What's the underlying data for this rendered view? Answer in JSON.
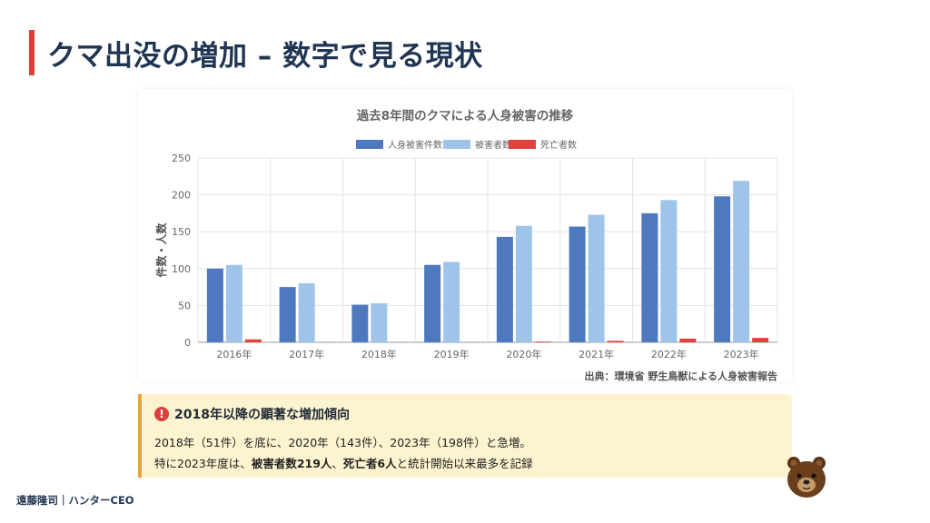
{
  "slide": {
    "title": "クマ出没の増加 – 数字で見る現状",
    "footer": "遠藤隆司｜ハンターCEO",
    "source": "出典：環境省 野生鳥獣による人身被害報告",
    "accent_color": "#d9403b"
  },
  "callout": {
    "icon": "alert-circle-icon",
    "title": "2018年以降の顕著な増加傾向",
    "line1": "2018年（51件）を底に、2020年（143件）、2023年（198件）と急増。",
    "line2_prefix": "特に2023年度は、",
    "line2_bold1": "被害者数219人",
    "line2_mid": "、",
    "line2_bold2": "死亡者6人",
    "line2_suffix": "と統計開始以来最多を記録"
  },
  "chart_data": {
    "type": "bar",
    "title": "過去8年間のクマによる人身被害の推移",
    "ylabel": "件数・人数",
    "xlabel": "",
    "categories": [
      "2016年",
      "2017年",
      "2018年",
      "2019年",
      "2020年",
      "2021年",
      "2022年",
      "2023年"
    ],
    "ylim": [
      0,
      250
    ],
    "yticks": [
      0,
      50,
      100,
      150,
      200,
      250
    ],
    "grid": true,
    "legend_position": "top",
    "series": [
      {
        "name": "人身被害件数",
        "color": "#4e79bf",
        "values": [
          100,
          75,
          51,
          105,
          143,
          157,
          175,
          198
        ]
      },
      {
        "name": "被害者数",
        "color": "#9fc4ea",
        "values": [
          105,
          80,
          53,
          109,
          158,
          173,
          193,
          219
        ]
      },
      {
        "name": "死亡者数",
        "color": "#e0433d",
        "values": [
          4,
          0,
          0,
          0,
          1,
          2,
          5,
          6
        ]
      }
    ]
  }
}
